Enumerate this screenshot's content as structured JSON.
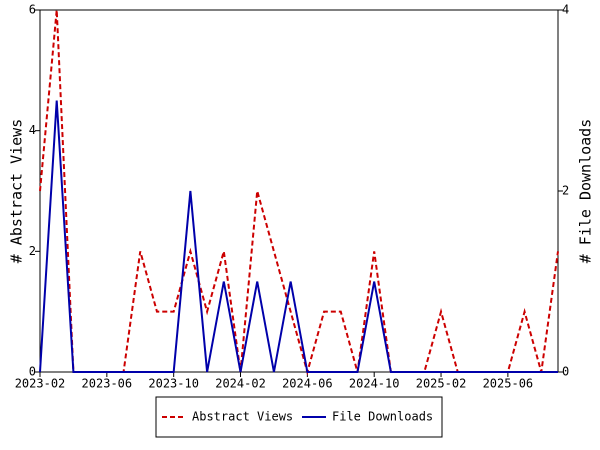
{
  "chart_data": {
    "type": "line",
    "x": [
      "2023-02",
      "2023-03",
      "2023-04",
      "2023-05",
      "2023-06",
      "2023-07",
      "2023-08",
      "2023-09",
      "2023-10",
      "2023-11",
      "2023-12",
      "2024-01",
      "2024-02",
      "2024-03",
      "2024-04",
      "2024-05",
      "2024-06",
      "2024-07",
      "2024-08",
      "2024-09",
      "2024-10",
      "2024-11",
      "2024-12",
      "2025-01",
      "2025-02",
      "2025-03",
      "2025-04",
      "2025-05",
      "2025-06",
      "2025-07",
      "2025-08",
      "2025-09"
    ],
    "series": [
      {
        "name": "Abstract Views",
        "color": "#cc0000",
        "dash": true,
        "axis": "y",
        "values": [
          3,
          6,
          0,
          0,
          0,
          0,
          2,
          1,
          1,
          2,
          1,
          2,
          0,
          3,
          2,
          1,
          0,
          1,
          1,
          0,
          2,
          0,
          0,
          0,
          1,
          0,
          0,
          0,
          0,
          1,
          0,
          2
        ]
      },
      {
        "name": "File Downloads",
        "color": "#0000aa",
        "dash": false,
        "axis": "y2",
        "values": [
          0,
          3,
          0,
          0,
          0,
          0,
          0,
          0,
          0,
          2,
          0,
          1,
          0,
          1,
          0,
          1,
          0,
          0,
          0,
          0,
          1,
          0,
          0,
          0,
          0,
          0,
          0,
          0,
          0,
          0,
          0,
          0
        ]
      }
    ],
    "xticks": [
      "2023-02",
      "2023-06",
      "2023-10",
      "2024-02",
      "2024-06",
      "2024-10",
      "2025-02",
      "2025-06"
    ],
    "ylabel": "# Abstract Views",
    "y2label": "# File Downloads",
    "ylim": [
      0,
      6
    ],
    "yticks": [
      0,
      2,
      4,
      6
    ],
    "y2lim": [
      0,
      4
    ],
    "y2ticks": [
      0,
      2,
      4
    ]
  }
}
